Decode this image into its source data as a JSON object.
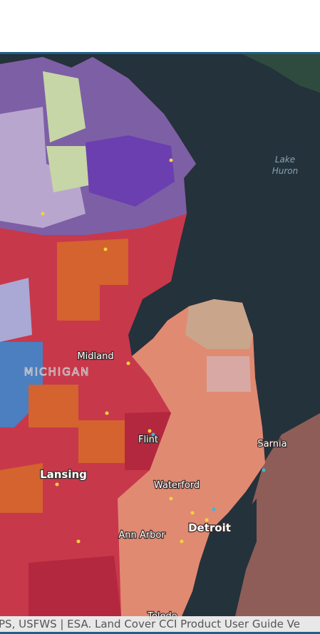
{
  "map": {
    "water_label": [
      "Lake",
      "Huron"
    ],
    "state_label": "MICHIGAN",
    "city_labels": [
      "Midland",
      "Flint",
      "Sarnia",
      "Lansing",
      "Waterford",
      "Detroit",
      "Ann Arbor",
      "Toledo"
    ]
  },
  "attribution": "PS, USFWS | ESA. Land Cover CCI Product User Guide Ve"
}
